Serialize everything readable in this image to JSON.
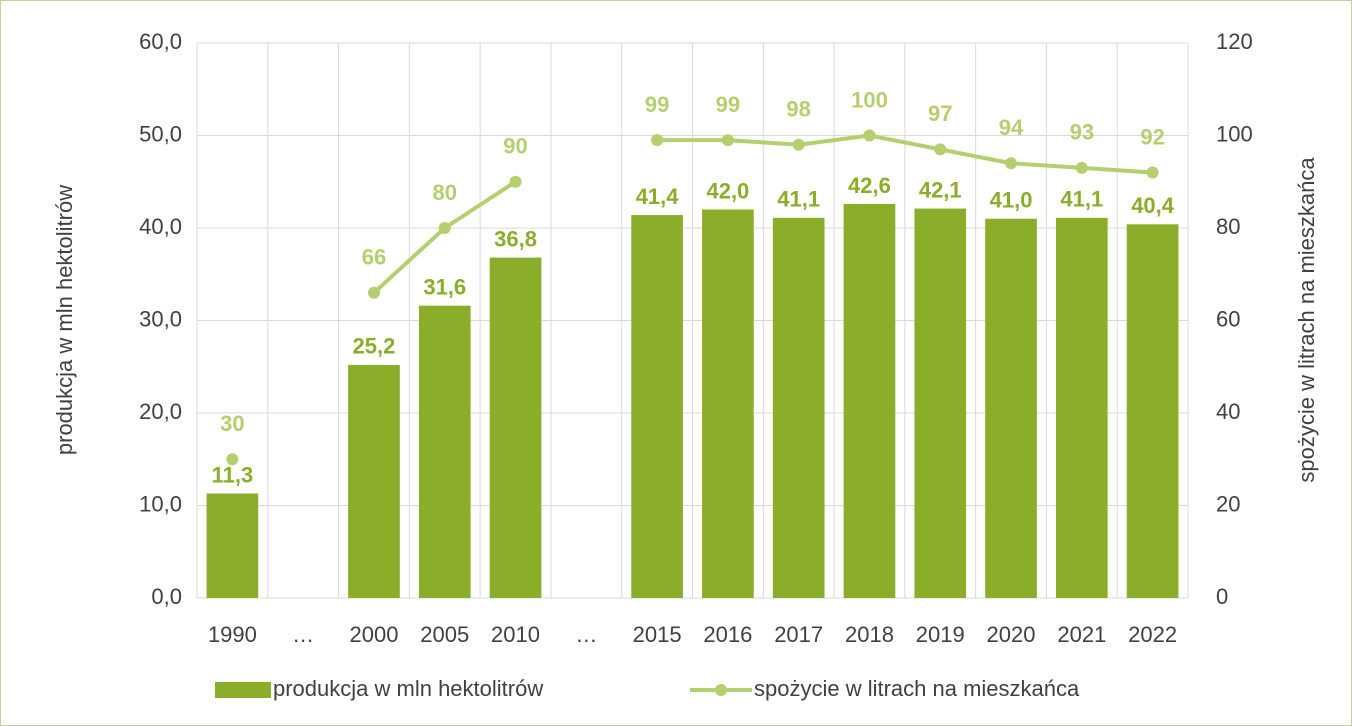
{
  "chart_data": {
    "type": "bar_line",
    "categories": [
      "1990",
      "…",
      "2000",
      "2005",
      "2010",
      "…",
      "2015",
      "2016",
      "2017",
      "2018",
      "2019",
      "2020",
      "2021",
      "2022"
    ],
    "series": [
      {
        "name": "produkcja w mln hektolitrów",
        "type": "bar",
        "color": "#8aae2a",
        "values": [
          11.3,
          null,
          25.2,
          31.6,
          36.8,
          null,
          41.4,
          42.0,
          41.1,
          42.6,
          42.1,
          41.0,
          41.1,
          40.4
        ],
        "value_labels": [
          "11,3",
          null,
          "25,2",
          "31,6",
          "36,8",
          null,
          "41,4",
          "42,0",
          "41,1",
          "42,6",
          "42,1",
          "41,0",
          "41,1",
          "40,4"
        ]
      },
      {
        "name": "spożycie w litrach na mieszkańca",
        "type": "line",
        "axis": "y2",
        "color": "#b5cf6e",
        "values": [
          30,
          null,
          66,
          80,
          90,
          null,
          99,
          99,
          98,
          100,
          97,
          94,
          93,
          92
        ]
      }
    ],
    "ylabel": "produkcja w mln hektolitrów",
    "y2label": "spożycie w litrach na mieszkańca",
    "ylim": [
      0,
      60
    ],
    "yticks": [
      {
        "value": 0,
        "label": "0,0"
      },
      {
        "value": 10,
        "label": "10,0"
      },
      {
        "value": 20,
        "label": "20,0"
      },
      {
        "value": 30,
        "label": "30,0"
      },
      {
        "value": 40,
        "label": "40,0"
      },
      {
        "value": 50,
        "label": "50,0"
      },
      {
        "value": 60,
        "label": "60,0"
      }
    ],
    "y2lim": [
      0,
      120
    ],
    "y2ticks": [
      0,
      20,
      40,
      60,
      80,
      100,
      120
    ],
    "grid": true,
    "legend": "bottom"
  }
}
